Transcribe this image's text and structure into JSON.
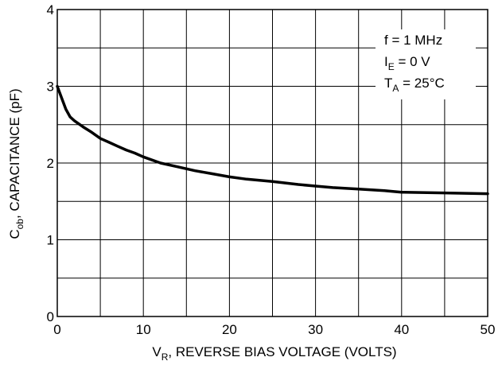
{
  "chart_data": {
    "type": "line",
    "xlabel": {
      "main": "V",
      "sub": "R",
      "rest": ", REVERSE BIAS VOLTAGE (VOLTS)"
    },
    "ylabel": {
      "main": "C",
      "sub": "ob",
      "rest": ", CAPACITANCE (pF)"
    },
    "xlim": [
      0,
      50
    ],
    "ylim": [
      0,
      4
    ],
    "x_ticks": [
      0,
      10,
      20,
      30,
      40,
      50
    ],
    "y_ticks": [
      0,
      1,
      2,
      3,
      4
    ],
    "grid": true,
    "annotations": [
      {
        "main": "f = 1 MHz",
        "sub": "",
        "rest": ""
      },
      {
        "main": "I",
        "sub": "E",
        "rest": " = 0 V"
      },
      {
        "main": "T",
        "sub": "A",
        "rest": " = 25°C"
      }
    ],
    "series": [
      {
        "color": "#000000",
        "points": [
          [
            0,
            3.0
          ],
          [
            0.5,
            2.85
          ],
          [
            1,
            2.7
          ],
          [
            1.5,
            2.6
          ],
          [
            2,
            2.55
          ],
          [
            3,
            2.47
          ],
          [
            4,
            2.4
          ],
          [
            5,
            2.32
          ],
          [
            6,
            2.27
          ],
          [
            7,
            2.22
          ],
          [
            8,
            2.17
          ],
          [
            9,
            2.13
          ],
          [
            10,
            2.08
          ],
          [
            12,
            2.0
          ],
          [
            14,
            1.95
          ],
          [
            16,
            1.9
          ],
          [
            18,
            1.86
          ],
          [
            20,
            1.82
          ],
          [
            22,
            1.79
          ],
          [
            25,
            1.76
          ],
          [
            28,
            1.72
          ],
          [
            30,
            1.7
          ],
          [
            32,
            1.68
          ],
          [
            35,
            1.66
          ],
          [
            38,
            1.64
          ],
          [
            40,
            1.62
          ],
          [
            45,
            1.61
          ],
          [
            50,
            1.6
          ]
        ]
      }
    ]
  }
}
